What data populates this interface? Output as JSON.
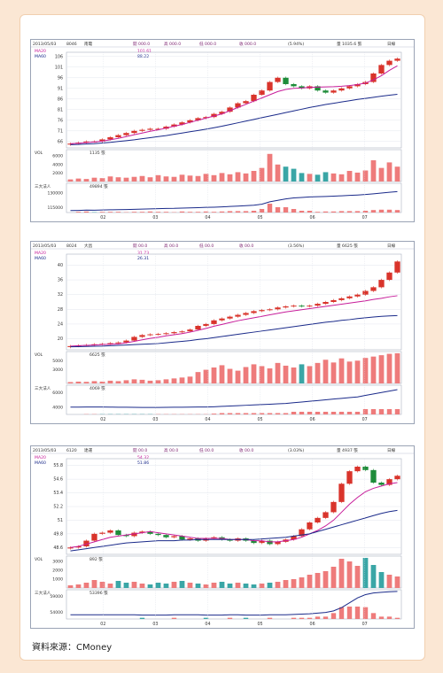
{
  "source_label": "資料來源：CMoney",
  "chart_data": [
    {
      "type": "candlestick",
      "header": [
        "2013/05/03",
        "8046",
        "南電",
        "開 000.0",
        "高 000.0",
        "低 000.0",
        "收 000.0",
        "(5.94%)",
        "量 1035.6 張",
        "日線"
      ],
      "legend": [
        "MA20",
        "MA60"
      ],
      "legend_values": [
        "101.61",
        "88.22"
      ],
      "price_ticks": [
        106,
        101,
        96,
        91,
        86,
        81,
        76,
        71,
        66
      ],
      "price_range": [
        63,
        108
      ],
      "price_close": [
        65,
        65.5,
        66,
        66,
        67,
        68,
        69,
        70,
        71,
        71.5,
        72,
        72,
        73,
        74,
        75,
        76,
        77,
        77.5,
        79,
        80,
        82,
        84,
        85,
        88,
        90,
        94,
        96,
        93,
        92,
        91,
        92,
        90,
        89,
        90,
        91,
        92,
        93,
        94,
        98,
        102,
        104,
        105
      ],
      "ma20": [
        65,
        65.2,
        65.5,
        65.8,
        66.2,
        66.8,
        67.5,
        68.3,
        69.2,
        70,
        70.8,
        71.5,
        72.3,
        73.2,
        74,
        75,
        76,
        77,
        78,
        79,
        80.5,
        82,
        83.5,
        85,
        86.5,
        88,
        89.5,
        90.5,
        91,
        91.2,
        91.5,
        91.6,
        91.7,
        91.8,
        92,
        92.3,
        92.8,
        93.5,
        95,
        97,
        99.5,
        101.6
      ],
      "ma60": [
        64.5,
        64.6,
        64.8,
        65,
        65.3,
        65.6,
        66,
        66.4,
        66.8,
        67.3,
        67.8,
        68.3,
        68.8,
        69.4,
        70,
        70.6,
        71.2,
        71.8,
        72.5,
        73.2,
        74,
        74.8,
        75.6,
        76.4,
        77.2,
        78,
        78.8,
        79.6,
        80.4,
        81.2,
        82,
        82.7,
        83.4,
        84,
        84.6,
        85.2,
        85.8,
        86.3,
        86.8,
        87.3,
        87.8,
        88.2
      ],
      "volume_label": "VOL",
      "volume_values_label": "1135 張",
      "volume_ticks": [
        6000,
        4000,
        2000
      ],
      "volume_range": [
        0,
        7500
      ],
      "volume": [
        500,
        700,
        600,
        900,
        800,
        1200,
        1000,
        900,
        1100,
        1300,
        1000,
        1500,
        1200,
        1100,
        1600,
        1400,
        1300,
        1800,
        1500,
        2000,
        1700,
        2200,
        1900,
        2500,
        3200,
        6500,
        4000,
        3500,
        3000,
        2000,
        1800,
        1600,
        2200,
        1900,
        1700,
        2500,
        2100,
        2600,
        5000,
        3200,
        4500,
        3500
      ],
      "chips_label": "三大法人",
      "chips_value": "49894 張",
      "chips_ticks": [
        130000,
        115000
      ],
      "chips_range": [
        110000,
        140000
      ],
      "chips_line": [
        112000,
        112200,
        112500,
        112400,
        112600,
        112800,
        113000,
        113100,
        113300,
        113500,
        113800,
        114000,
        114200,
        114300,
        114600,
        114800,
        115000,
        115300,
        115500,
        115800,
        116200,
        116600,
        117000,
        117500,
        118500,
        121000,
        122500,
        124000,
        125000,
        125500,
        126000,
        126200,
        126500,
        126800,
        127200,
        127600,
        128000,
        128500,
        129200,
        130000,
        130800,
        131500
      ],
      "x_labels": [
        "02",
        "03",
        "04",
        "05",
        "06",
        "07"
      ]
    },
    {
      "type": "candlestick",
      "header": [
        "2013/05/03",
        "8024",
        "大昌",
        "開 00.0",
        "高 00.0",
        "低 00.0",
        "收 00.0",
        "(3.56%)",
        "量 6625 張",
        "日線"
      ],
      "legend": [
        "MA20",
        "MA60"
      ],
      "legend_values": [
        "31.73",
        "26.31"
      ],
      "price_ticks": [
        40,
        36,
        32,
        28,
        24,
        20
      ],
      "price_range": [
        17,
        43
      ],
      "price_close": [
        18,
        18.2,
        18.3,
        18.5,
        18.6,
        18.8,
        19,
        19.5,
        20.5,
        21,
        21.2,
        21.3,
        21.5,
        21.8,
        22,
        22.5,
        23.5,
        24,
        25,
        25.5,
        26,
        26.5,
        27,
        27.5,
        27.8,
        28,
        28.5,
        28.8,
        29,
        28.8,
        29,
        29.5,
        30,
        30.5,
        31,
        31.5,
        32,
        33,
        34,
        36,
        38,
        41
      ],
      "ma20": [
        18,
        18.1,
        18.2,
        18.3,
        18.4,
        18.5,
        18.6,
        18.9,
        19.3,
        19.7,
        20.1,
        20.4,
        20.8,
        21.1,
        21.4,
        21.8,
        22.3,
        22.8,
        23.4,
        23.9,
        24.4,
        24.9,
        25.3,
        25.7,
        26.1,
        26.5,
        26.9,
        27.3,
        27.6,
        27.9,
        28.2,
        28.5,
        28.8,
        29.1,
        29.4,
        29.7,
        30,
        30.3,
        30.7,
        31,
        31.4,
        31.7
      ],
      "ma60": [
        17.8,
        17.85,
        17.9,
        17.95,
        18,
        18.1,
        18.2,
        18.3,
        18.4,
        18.5,
        18.6,
        18.7,
        18.9,
        19.1,
        19.3,
        19.5,
        19.8,
        20,
        20.3,
        20.6,
        20.9,
        21.2,
        21.5,
        21.8,
        22.1,
        22.4,
        22.7,
        23,
        23.3,
        23.6,
        23.9,
        24.2,
        24.5,
        24.7,
        25,
        25.2,
        25.5,
        25.7,
        25.9,
        26.1,
        26.2,
        26.3
      ],
      "volume_label": "VOL",
      "volume_values_label": "6625 張",
      "volume_ticks": [
        5000,
        3000
      ],
      "volume_range": [
        0,
        7000
      ],
      "volume": [
        300,
        400,
        350,
        500,
        400,
        600,
        500,
        700,
        900,
        800,
        600,
        700,
        900,
        1100,
        1300,
        1500,
        2500,
        3000,
        3500,
        4000,
        3200,
        2800,
        3600,
        4200,
        3800,
        3300,
        4500,
        3900,
        3500,
        4200,
        3800,
        4500,
        5200,
        4600,
        5500,
        4800,
        5000,
        5600,
        5900,
        6200,
        6500,
        6625
      ],
      "chips_label": "三大法人",
      "chips_value": "4069 張",
      "chips_ticks": [
        6000,
        4000
      ],
      "chips_range": [
        3000,
        7000
      ],
      "chips_line": [
        4000,
        4000,
        4010,
        4020,
        4010,
        4000,
        3990,
        3980,
        3970,
        3960,
        3950,
        3960,
        3970,
        3980,
        3990,
        4000,
        4010,
        4020,
        4050,
        4100,
        4150,
        4200,
        4250,
        4300,
        4350,
        4400,
        4450,
        4500,
        4600,
        4700,
        4800,
        4900,
        5000,
        5100,
        5200,
        5300,
        5400,
        5600,
        5800,
        6000,
        6200,
        6400
      ],
      "x_labels": [
        "02",
        "03",
        "04",
        "05",
        "06",
        "07"
      ]
    },
    {
      "type": "candlestick",
      "header": [
        "2013/05/03",
        "6120",
        "達運",
        "開 00.0",
        "高 00.0",
        "低 00.0",
        "收 00.0",
        "(3.03%)",
        "量 4937 張",
        "日線"
      ],
      "legend": [
        "MA20",
        "MA60"
      ],
      "legend_values": [
        "54.32",
        "51.86"
      ],
      "price_ticks": [
        55.8,
        54.6,
        53.4,
        52.2,
        51,
        49.8,
        48.6
      ],
      "price_range": [
        48,
        56.4
      ],
      "price_close": [
        48.6,
        48.7,
        49.2,
        49.8,
        49.9,
        50.1,
        49.7,
        49.6,
        49.9,
        50,
        49.8,
        49.7,
        49.5,
        49.6,
        49.3,
        49.4,
        49.2,
        49.4,
        49.5,
        49.3,
        49.2,
        49.4,
        49.2,
        49,
        49.2,
        48.9,
        49.1,
        49.3,
        49.6,
        50.2,
        50.8,
        51.2,
        51.7,
        52.6,
        54.2,
        55.3,
        55.7,
        55.4,
        54.3,
        54.1,
        54.6,
        54.9
      ],
      "ma20": [
        48.6,
        48.7,
        48.9,
        49.1,
        49.3,
        49.5,
        49.6,
        49.7,
        49.8,
        49.9,
        50,
        49.9,
        49.8,
        49.7,
        49.6,
        49.5,
        49.4,
        49.4,
        49.4,
        49.4,
        49.3,
        49.3,
        49.3,
        49.2,
        49.2,
        49.1,
        49.1,
        49.2,
        49.3,
        49.5,
        49.8,
        50.1,
        50.5,
        51,
        51.7,
        52.4,
        53,
        53.5,
        53.8,
        54,
        54.2,
        54.3
      ],
      "ma60": [
        48.3,
        48.4,
        48.5,
        48.6,
        48.7,
        48.8,
        48.9,
        49,
        49.05,
        49.1,
        49.15,
        49.2,
        49.2,
        49.2,
        49.25,
        49.25,
        49.3,
        49.3,
        49.3,
        49.3,
        49.3,
        49.3,
        49.3,
        49.3,
        49.35,
        49.4,
        49.45,
        49.5,
        49.6,
        49.7,
        49.8,
        50,
        50.2,
        50.4,
        50.6,
        50.8,
        51,
        51.2,
        51.4,
        51.6,
        51.75,
        51.86
      ],
      "volume_label": "VOL",
      "volume_values_label": "892 張",
      "volume_ticks": [
        3000,
        2000,
        1000
      ],
      "volume_range": [
        0,
        3600
      ],
      "volume": [
        300,
        400,
        600,
        900,
        700,
        500,
        800,
        600,
        700,
        500,
        400,
        600,
        500,
        700,
        800,
        600,
        500,
        400,
        600,
        700,
        500,
        600,
        500,
        400,
        500,
        600,
        700,
        900,
        1000,
        1200,
        1500,
        1700,
        1900,
        2400,
        3300,
        3000,
        2500,
        3400,
        2600,
        1800,
        1500,
        1300
      ],
      "chips_label": "三大法人",
      "chips_value": "53396 張",
      "chips_ticks": [
        59000,
        54000
      ],
      "chips_range": [
        52000,
        61000
      ],
      "chips_line": [
        53300,
        53300,
        53300,
        53300,
        53300,
        53300,
        53300,
        53300,
        53300,
        53200,
        53200,
        53200,
        53200,
        53300,
        53300,
        53300,
        53300,
        53200,
        53200,
        53200,
        53300,
        53300,
        53200,
        53200,
        53200,
        53300,
        53300,
        53300,
        53400,
        53500,
        53600,
        53800,
        54000,
        54500,
        55500,
        57000,
        58500,
        59500,
        60000,
        60200,
        60400,
        60500
      ],
      "x_labels": [
        "02",
        "03",
        "04",
        "05",
        "06",
        "07"
      ]
    }
  ]
}
